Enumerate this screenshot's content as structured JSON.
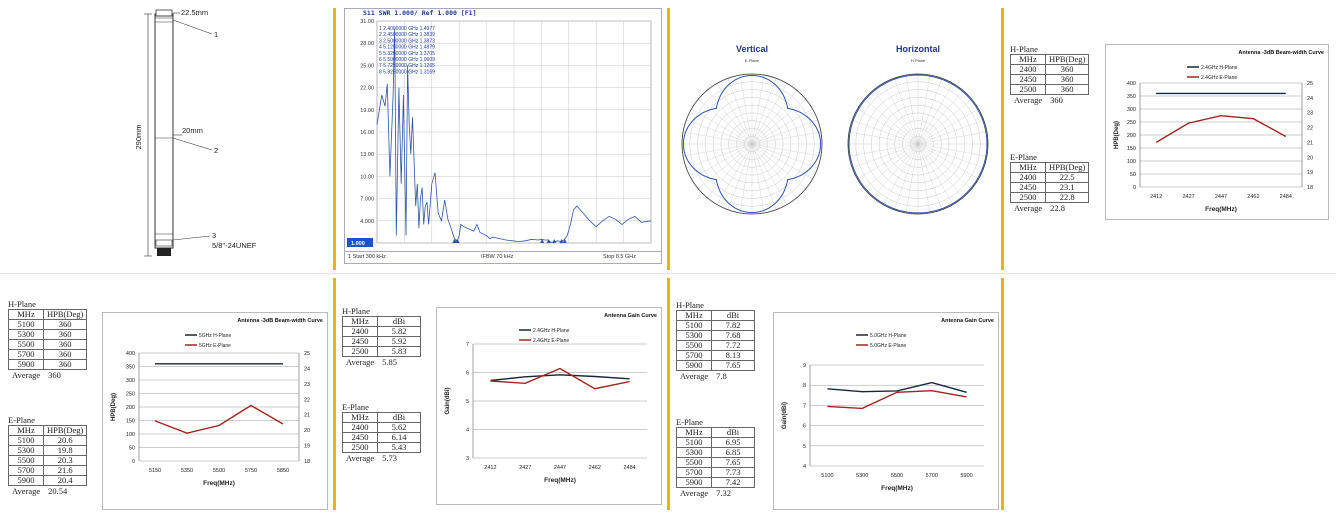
{
  "colors": {
    "h_plane": "#17263f",
    "e_plane": "#a0251c",
    "vswr_trace": "#2e55a8",
    "divider": "#e8b21a"
  },
  "antenna": {
    "dim_top": "22.5mm",
    "dim_mid": "20mm",
    "dim_len": "290mm",
    "label_1": "1",
    "label_2": "2",
    "label_3": "3",
    "thread": "5/8\"-24UNEF"
  },
  "vswr": {
    "header": "S11 SWR 1.000/ Ref 1.000 [F1]",
    "markers": [
      "1  2.4000000 GHz  1.4977",
      "2  2.4500000 GHz  1.3839",
      "3  2.5000000 GHz  1.3873",
      "4  5.1250000 GHz  1.4879",
      "5  5.3250000 GHz  1.3705",
      "6  5.5000000 GHz  1.0609",
      "7  5.7250000 GHz  1.1265",
      "8  5.8250000 GHz  1.3169"
    ],
    "footer_start": "1  Start 300 kHz",
    "footer_ifbw": "IFBW 70 kHz",
    "footer_stop": "Stop 8.5 GHz",
    "ref_label": "1.000",
    "chart_data": {
      "type": "line",
      "title": "S11 SWR 1.000/ Ref 1.000 [F1]",
      "xlabel": "",
      "ylabel": "",
      "xlim": [
        0.0003,
        8.5
      ],
      "ylim": [
        1.0,
        31.0
      ],
      "y_ticks": [
        "31.00",
        "28.00",
        "25.00",
        "22.00",
        "19.00",
        "16.00",
        "13.00",
        "10.00",
        "7.000",
        "4.000",
        "1.000"
      ],
      "x": [
        0.0003,
        0.15,
        0.25,
        0.32,
        0.4,
        0.5,
        0.55,
        0.6,
        0.68,
        0.75,
        0.82,
        0.9,
        0.95,
        1.0,
        1.05,
        1.1,
        1.2,
        1.25,
        1.3,
        1.35,
        1.4,
        1.45,
        1.5,
        1.55,
        1.6,
        1.7,
        1.8,
        1.9,
        2.0,
        2.1,
        2.2,
        2.3,
        2.4,
        2.45,
        2.5,
        2.55,
        2.6,
        2.7,
        2.8,
        2.9,
        3.0,
        3.1,
        3.2,
        3.3,
        3.4,
        3.5,
        3.6,
        3.8,
        4.0,
        4.2,
        4.4,
        4.6,
        4.8,
        5.0,
        5.1,
        5.2,
        5.3,
        5.4,
        5.5,
        5.6,
        5.7,
        5.8,
        5.9,
        6.0,
        6.1,
        6.2,
        6.4,
        6.6,
        6.8,
        7.0,
        7.2,
        7.4,
        7.6,
        7.8,
        8.0,
        8.2,
        8.5
      ],
      "series": [
        {
          "values": [
            17,
            21,
            19.5,
            22.5,
            10,
            21,
            30,
            2,
            22,
            9,
            21,
            2,
            25,
            17,
            13,
            18,
            6,
            9,
            3,
            7,
            8.5,
            3.5,
            6,
            6.5,
            3.5,
            9,
            10.5,
            5,
            4,
            6.8,
            4.2,
            3,
            1.6,
            1.4,
            1.4,
            2,
            3.5,
            3.2,
            3,
            2.8,
            2.6,
            3.5,
            2.4,
            2.2,
            2,
            1.6,
            1.8,
            1.6,
            1.4,
            1.3,
            1.2,
            1.3,
            1.5,
            1.4,
            1.5,
            1.4,
            1.4,
            1.1,
            1.1,
            1.3,
            1.2,
            1.4,
            2,
            3.5,
            5.5,
            6,
            5,
            4,
            3.2,
            4,
            4.6,
            4.2,
            3.5,
            4.2,
            4.6,
            3.8,
            4
          ]
        }
      ]
    }
  },
  "patterns": {
    "vertical_title": "Vertical",
    "horizontal_title": "Horizontal",
    "vertical_sub": "E-Plane",
    "horizontal_sub": "H-Plane"
  },
  "tables": {
    "t1": {
      "title": "H-Plane",
      "headers": [
        "MHz",
        "HPB(Deg)"
      ],
      "rows": [
        [
          "2400",
          "360"
        ],
        [
          "2450",
          "360"
        ],
        [
          "2500",
          "360"
        ]
      ],
      "avg_label": "Average",
      "avg_value": "360"
    },
    "t2": {
      "title": "E-Plane",
      "headers": [
        "MHz",
        "HPB(Deg)"
      ],
      "rows": [
        [
          "2400",
          "22.5"
        ],
        [
          "2450",
          "23.1"
        ],
        [
          "2500",
          "22.8"
        ]
      ],
      "avg_label": "Average",
      "avg_value": "22.8"
    },
    "t3": {
      "title": "H-Plane",
      "headers": [
        "MHz",
        "HPB(Deg)"
      ],
      "rows": [
        [
          "5100",
          "360"
        ],
        [
          "5300",
          "360"
        ],
        [
          "5500",
          "360"
        ],
        [
          "5700",
          "360"
        ],
        [
          "5900",
          "360"
        ]
      ],
      "avg_label": "Average",
      "avg_value": "360"
    },
    "t4": {
      "title": "E-Plane",
      "headers": [
        "MHz",
        "HPB(Deg)"
      ],
      "rows": [
        [
          "5100",
          "20.6"
        ],
        [
          "5300",
          "19.8"
        ],
        [
          "5500",
          "20.3"
        ],
        [
          "5700",
          "21.6"
        ],
        [
          "5900",
          "20.4"
        ]
      ],
      "avg_label": "Average",
      "avg_value": "20.54"
    },
    "t5": {
      "title": "H-Plane",
      "headers": [
        "MHz",
        "dBi"
      ],
      "rows": [
        [
          "2400",
          "5.82"
        ],
        [
          "2450",
          "5.92"
        ],
        [
          "2500",
          "5.83"
        ]
      ],
      "avg_label": "Average",
      "avg_value": "5.85"
    },
    "t6": {
      "title": "E-Plane",
      "headers": [
        "MHz",
        "dBi"
      ],
      "rows": [
        [
          "2400",
          "5.62"
        ],
        [
          "2450",
          "6.14"
        ],
        [
          "2500",
          "5.43"
        ]
      ],
      "avg_label": "Average",
      "avg_value": "5.73"
    },
    "t7": {
      "title": "H-Plane",
      "headers": [
        "MHz",
        "dBi"
      ],
      "rows": [
        [
          "5100",
          "7.82"
        ],
        [
          "5300",
          "7.68"
        ],
        [
          "5500",
          "7.72"
        ],
        [
          "5700",
          "8.13"
        ],
        [
          "5900",
          "7.65"
        ]
      ],
      "avg_label": "Average",
      "avg_value": "7.8"
    },
    "t8": {
      "title": "E-Plane",
      "headers": [
        "MHz",
        "dBi"
      ],
      "rows": [
        [
          "5100",
          "6.95"
        ],
        [
          "5300",
          "6.85"
        ],
        [
          "5500",
          "7.65"
        ],
        [
          "5700",
          "7.73"
        ],
        [
          "5900",
          "7.42"
        ]
      ],
      "avg_label": "Average",
      "avg_value": "7.32"
    }
  },
  "chart_data": [
    {
      "id": "bw24",
      "type": "line",
      "title": "Antenna -3dB Beam-width Curve",
      "xlabel": "Freq(MHz)",
      "ylabel": "HPB(Deg)",
      "categories": [
        "2412",
        "2427",
        "2447",
        "2462",
        "2484"
      ],
      "ylim": [
        0,
        400
      ],
      "y_ticks": [
        "0",
        "50",
        "100",
        "150",
        "200",
        "250",
        "300",
        "350",
        "400"
      ],
      "y2lim": [
        18,
        25
      ],
      "y2_ticks": [
        "18",
        "19",
        "20",
        "21",
        "22",
        "23",
        "24",
        "25"
      ],
      "legend": "top-center",
      "series": [
        {
          "name": "2.4GHz H-Plane",
          "axis": "left",
          "values": [
            360,
            360,
            360,
            360,
            360
          ]
        },
        {
          "name": "2.4GHz E-Plane",
          "axis": "right",
          "values": [
            21.0,
            22.3,
            22.8,
            22.6,
            21.4
          ]
        }
      ]
    },
    {
      "id": "bw5",
      "type": "line",
      "title": "Antenna -3dB Beam-width Curve",
      "xlabel": "Freq(MHz)",
      "ylabel": "HPB(Deg)",
      "categories": [
        "5150",
        "5350",
        "5500",
        "5750",
        "5850"
      ],
      "ylim": [
        0,
        400
      ],
      "y_ticks": [
        "0",
        "50",
        "100",
        "150",
        "200",
        "250",
        "300",
        "350",
        "400"
      ],
      "y2lim": [
        18,
        25
      ],
      "y2_ticks": [
        "18",
        "19",
        "20",
        "21",
        "22",
        "23",
        "24",
        "25"
      ],
      "legend": "top-center",
      "series": [
        {
          "name": "5GHz H-Plane",
          "axis": "left",
          "values": [
            360,
            360,
            360,
            360,
            360
          ]
        },
        {
          "name": "5GHz E-Plane",
          "axis": "right",
          "values": [
            20.6,
            19.8,
            20.3,
            21.6,
            20.4
          ]
        }
      ]
    },
    {
      "id": "gain24",
      "type": "line",
      "title": "Antenna Gain Curve",
      "xlabel": "Freq(MHz)",
      "ylabel": "Gain(dBi)",
      "categories": [
        "2412",
        "2427",
        "2447",
        "2462",
        "2484"
      ],
      "ylim": [
        3,
        7
      ],
      "y_ticks": [
        "3",
        "4",
        "5",
        "6",
        "7"
      ],
      "legend": "top-center",
      "series": [
        {
          "name": "2.4GHz H-Plane",
          "axis": "left",
          "values": [
            5.72,
            5.85,
            5.92,
            5.86,
            5.78
          ]
        },
        {
          "name": "2.4GHz E-Plane",
          "axis": "left",
          "values": [
            5.7,
            5.62,
            6.14,
            5.43,
            5.68
          ]
        }
      ]
    },
    {
      "id": "gain5",
      "type": "line",
      "title": "Antenna Gain Curve",
      "xlabel": "Freq(MHz)",
      "ylabel": "Gain(dBi)",
      "categories": [
        "5100",
        "5300",
        "5500",
        "5700",
        "5900"
      ],
      "ylim": [
        4,
        9
      ],
      "y_ticks": [
        "4",
        "5",
        "6",
        "7",
        "8",
        "9"
      ],
      "legend": "top-center",
      "series": [
        {
          "name": "5.0GHz H-Plane",
          "axis": "left",
          "values": [
            7.82,
            7.68,
            7.72,
            8.13,
            7.65
          ]
        },
        {
          "name": "5.0GHz E-Plane",
          "axis": "left",
          "values": [
            6.95,
            6.85,
            7.65,
            7.73,
            7.42
          ]
        }
      ]
    }
  ]
}
